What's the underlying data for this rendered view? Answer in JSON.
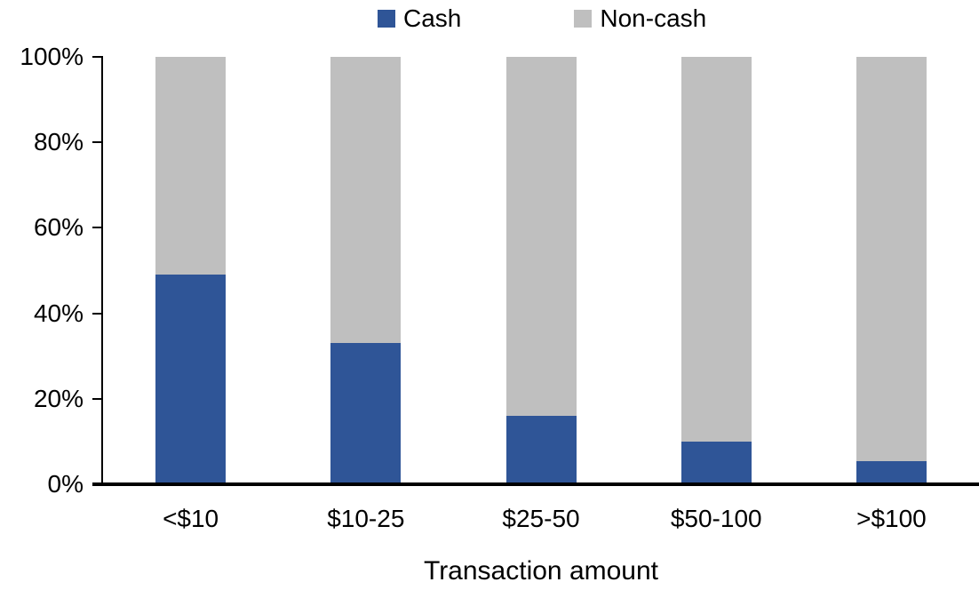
{
  "chart_data": {
    "type": "bar",
    "stacked": true,
    "percent_stacked": true,
    "title": "",
    "xlabel": "Transaction amount",
    "ylabel": "",
    "categories": [
      "<$10",
      "$10-25",
      "$25-50",
      "$50-100",
      ">$100"
    ],
    "series": [
      {
        "name": "Cash",
        "color": "#2F5597",
        "values": [
          49,
          33,
          16,
          10,
          5.5
        ]
      },
      {
        "name": "Non-cash",
        "color": "#BFBFBF",
        "values": [
          51,
          67,
          84,
          90,
          94.5
        ]
      }
    ],
    "ylim": [
      0,
      100
    ],
    "y_ticks": [
      {
        "value": 0,
        "label": "0%"
      },
      {
        "value": 20,
        "label": "20%"
      },
      {
        "value": 40,
        "label": "40%"
      },
      {
        "value": 60,
        "label": "60%"
      },
      {
        "value": 80,
        "label": "80%"
      },
      {
        "value": 100,
        "label": "100%"
      }
    ],
    "grid": false,
    "legend_position": "top",
    "axis_color": "#000000",
    "background_color": "#FFFFFF"
  },
  "legend": {
    "items": [
      {
        "label": "Cash",
        "color": "#2F5597"
      },
      {
        "label": "Non-cash",
        "color": "#BFBFBF"
      }
    ]
  }
}
